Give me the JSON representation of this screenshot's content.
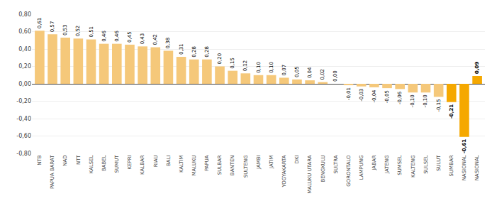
{
  "chart_data": {
    "type": "bar",
    "categories": [
      "NTB",
      "PAPUA BARAT",
      "NAD",
      "NTT",
      "KALSEL",
      "BABEL",
      "SUMUT",
      "KEPRI",
      "KALBAR",
      "RIAU",
      "BALI",
      "KALTIM",
      "MALUKU",
      "PAPUA",
      "SULBAR",
      "BANTEN",
      "SULTENG",
      "JAMBI",
      "JATIM",
      "YOGYAKARTA",
      "DKI",
      "MALUKU UTARA",
      "BENGKULU",
      "SULTRA",
      "GORONTALO",
      "LAMPUNG",
      "JABAR",
      "JATENG",
      "SUMSEL",
      "KALTENG",
      "SULSEL",
      "SULUT",
      "SUMBAR",
      "NASIONAL",
      "NASIONAL"
    ],
    "values": [
      0.61,
      0.57,
      0.53,
      0.52,
      0.51,
      0.46,
      0.46,
      0.45,
      0.43,
      0.42,
      0.38,
      0.31,
      0.28,
      0.28,
      0.2,
      0.15,
      0.12,
      0.1,
      0.1,
      0.07,
      0.05,
      0.04,
      0.02,
      0.0,
      -0.01,
      -0.03,
      -0.04,
      -0.05,
      -0.06,
      -0.1,
      -0.1,
      -0.15,
      -0.21,
      -0.61,
      0.09
    ],
    "value_labels": [
      "0,61",
      "0,57",
      "0,53",
      "0,52",
      "0,51",
      "0,46",
      "0,46",
      "0,45",
      "0,43",
      "0,42",
      "0,38",
      "0,31",
      "0,28",
      "0,28",
      "0,20",
      "0,15",
      "0,12",
      "0,10",
      "0,10",
      "0,07",
      "0,05",
      "0,04",
      "0,02",
      "0,00",
      "-0,01",
      "-0,03",
      "-0,04",
      "-0,05",
      "-0,06",
      "-0,10",
      "-0,10",
      "-0,15",
      "-0,21",
      "-0,61",
      "0,09"
    ],
    "colors": [
      "#F5C87A",
      "#F5C87A",
      "#F5C87A",
      "#F5C87A",
      "#F5C87A",
      "#F5C87A",
      "#F5C87A",
      "#F5C87A",
      "#F5C87A",
      "#F5C87A",
      "#F5C87A",
      "#F5C87A",
      "#F5C87A",
      "#F5C87A",
      "#F5C87A",
      "#F5C87A",
      "#F5C87A",
      "#F5C87A",
      "#F5C87A",
      "#F5C87A",
      "#F5C87A",
      "#F5C87A",
      "#F5C87A",
      "#F5C87A",
      "#F5C87A",
      "#F5C87A",
      "#F5C87A",
      "#F5C87A",
      "#F5C87A",
      "#F5C87A",
      "#F5C87A",
      "#F5C87A",
      "#F5A800",
      "#F5A800",
      "#F5A800"
    ],
    "ylim": [
      -0.8,
      0.8
    ],
    "yticks": [
      {
        "value": -0.8,
        "label": "-0,80"
      },
      {
        "value": -0.6,
        "label": "-0,60"
      },
      {
        "value": -0.4,
        "label": "-0,40"
      },
      {
        "value": -0.2,
        "label": "-0,20"
      },
      {
        "value": 0.0,
        "label": "0,00"
      },
      {
        "value": 0.2,
        "label": "0,20"
      },
      {
        "value": 0.4,
        "label": "0,40"
      },
      {
        "value": 0.6,
        "label": "0,60"
      },
      {
        "value": 0.8,
        "label": "0,80"
      }
    ],
    "grid": true,
    "data_labels": true
  }
}
